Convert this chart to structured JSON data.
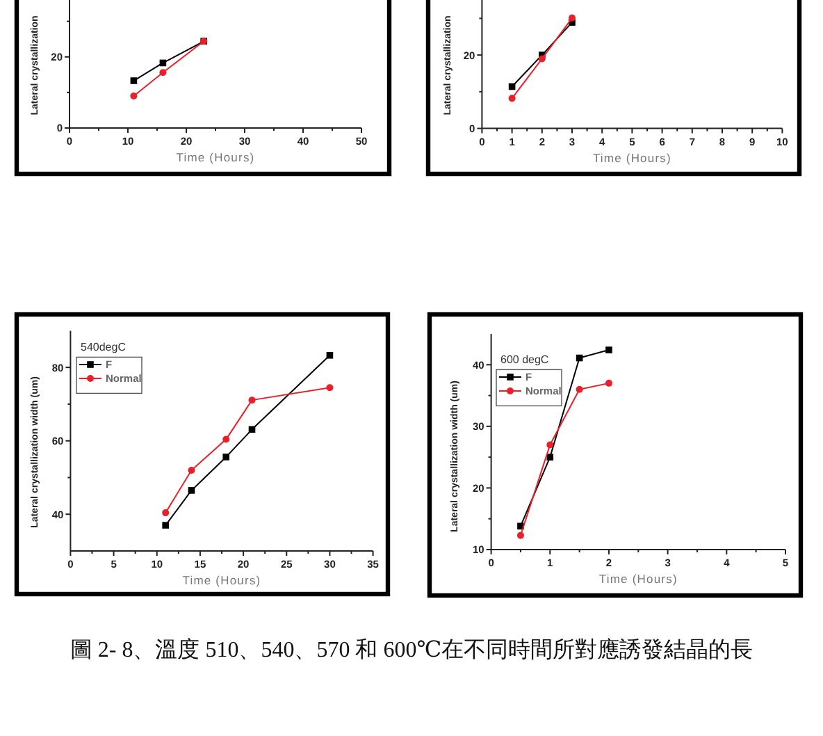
{
  "chart_data": [
    {
      "type": "line",
      "xlabel": "Time (Hours)",
      "ylabel": "Lateral crystallization",
      "x": [
        11,
        16,
        23
      ],
      "xlim": [
        0,
        50
      ],
      "xticks": [
        0,
        {
          "value": 5,
          "label": null
        },
        10,
        {
          "value": 15,
          "label": null
        },
        20,
        {
          "value": 25,
          "label": null
        },
        30,
        {
          "value": 35,
          "label": null
        },
        40,
        {
          "value": 45,
          "label": null
        },
        50
      ],
      "ylim": [
        0,
        36
      ],
      "yticks": [
        0,
        {
          "value": 10,
          "label": null
        },
        20,
        {
          "value": 30,
          "label": null
        }
      ],
      "series": [
        {
          "color": "#000000",
          "marker": "square",
          "values": [
            13.3,
            18.3,
            24.4
          ]
        },
        {
          "color": "#e8202a",
          "marker": "circle",
          "values": [
            9.0,
            15.6,
            24.4
          ]
        }
      ]
    },
    {
      "type": "line",
      "xlabel": "Time (Hours)",
      "ylabel": "Lateral crystallization",
      "x": [
        1,
        2,
        3
      ],
      "xlim": [
        0,
        10
      ],
      "xticks": [
        0,
        {
          "value": 0.5,
          "label": null
        },
        1,
        {
          "value": 1.5,
          "label": null
        },
        2,
        {
          "value": 2.5,
          "label": null
        },
        3,
        {
          "value": 3.5,
          "label": null
        },
        4,
        {
          "value": 4.5,
          "label": null
        },
        5,
        {
          "value": 5.5,
          "label": null
        },
        6,
        {
          "value": 6.5,
          "label": null
        },
        7,
        {
          "value": 7.5,
          "label": null
        },
        8,
        {
          "value": 8.5,
          "label": null
        },
        9,
        {
          "value": 9.5,
          "label": null
        },
        10
      ],
      "ylim": [
        0,
        35
      ],
      "yticks": [
        0,
        {
          "value": 10,
          "label": null
        },
        20,
        {
          "value": 30,
          "label": null
        }
      ],
      "series": [
        {
          "color": "#000000",
          "marker": "square",
          "values": [
            11.4,
            20.0,
            28.9
          ]
        },
        {
          "color": "#e8202a",
          "marker": "circle",
          "values": [
            8.2,
            19.0,
            30.1
          ]
        }
      ]
    },
    {
      "type": "line",
      "xlabel": "Time (Hours)",
      "ylabel": "Lateral crystallization width (um)",
      "legend": "top left",
      "legend_title": "540degC",
      "x": [
        11,
        14,
        18,
        21,
        30
      ],
      "xlim": [
        0,
        35
      ],
      "xticks": [
        0,
        {
          "value": 2.5,
          "label": null
        },
        5,
        {
          "value": 7.5,
          "label": null
        },
        10,
        {
          "value": 12.5,
          "label": null
        },
        15,
        {
          "value": 17.5,
          "label": null
        },
        20,
        {
          "value": 22.5,
          "label": null
        },
        25,
        {
          "value": 27.5,
          "label": null
        },
        30,
        {
          "value": 32.5,
          "label": null
        },
        35
      ],
      "ylim": [
        30,
        90
      ],
      "yticks": [
        40,
        {
          "value": 50,
          "label": null
        },
        60,
        {
          "value": 70,
          "label": null
        },
        80
      ],
      "series": [
        {
          "name": "F",
          "color": "#000000",
          "marker": "square",
          "values": [
            37.0,
            46.5,
            55.6,
            63.1,
            83.3
          ]
        },
        {
          "name": "Normal",
          "color": "#e8202a",
          "marker": "circle",
          "values": [
            40.4,
            52.0,
            60.4,
            71.1,
            74.5
          ]
        }
      ]
    },
    {
      "type": "line",
      "xlabel": "Time (Hours)",
      "ylabel": "Lateral crystallization width (um)",
      "legend": "top left",
      "legend_title": "600 degC",
      "x": [
        0.5,
        1,
        1.5,
        2
      ],
      "xlim": [
        0,
        5
      ],
      "xticks": [
        0,
        {
          "value": 0.5,
          "label": null
        },
        1,
        {
          "value": 1.5,
          "label": null
        },
        2,
        {
          "value": 2.5,
          "label": null
        },
        3,
        {
          "value": 3.5,
          "label": null
        },
        4,
        {
          "value": 4.5,
          "label": null
        },
        5
      ],
      "ylim": [
        10,
        45
      ],
      "yticks": [
        10,
        {
          "value": 15,
          "label": null
        },
        20,
        {
          "value": 25,
          "label": null
        },
        30,
        {
          "value": 35,
          "label": null
        },
        40
      ],
      "series": [
        {
          "name": "F",
          "color": "#000000",
          "marker": "square",
          "values": [
            13.8,
            25.0,
            41.1,
            42.4
          ]
        },
        {
          "name": "Normal",
          "color": "#e8202a",
          "marker": "circle",
          "values": [
            12.3,
            27.0,
            36.0,
            37.0
          ]
        }
      ]
    },
    {
      "type": "other",
      "annotations": [
        "圖 2- 8、溫度 510、540、570 和 600℃在不同時間所對應誘發結晶的長"
      ]
    }
  ]
}
